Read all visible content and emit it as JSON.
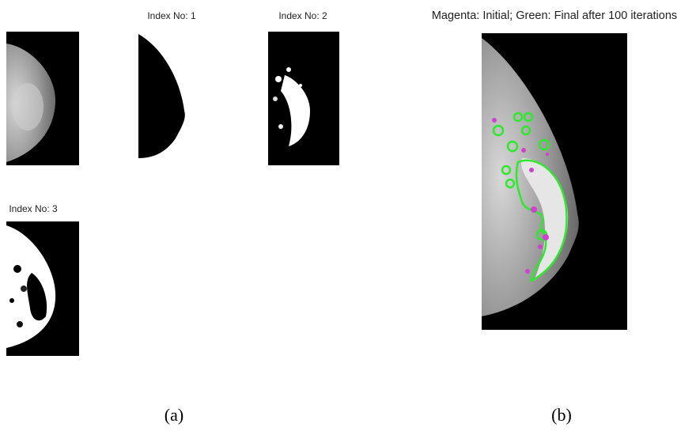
{
  "panel_a": {
    "titles": [
      "Index No: 1",
      "Index No: 2",
      "Index No: 3"
    ],
    "caption": "(a)"
  },
  "panel_b": {
    "title": "Magenta: Initial; Green: Final after 100 iterations",
    "caption": "(b)"
  }
}
